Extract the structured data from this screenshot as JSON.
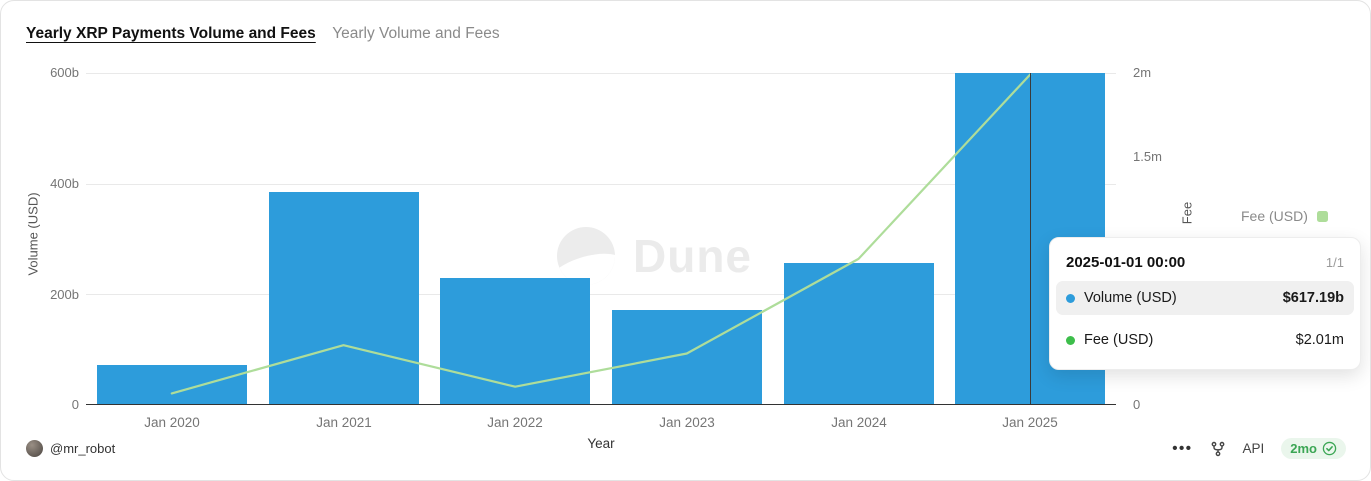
{
  "header": {
    "title": "Yearly XRP Payments Volume and Fees",
    "subtitle": "Yearly Volume and Fees"
  },
  "chart_data": {
    "type": "bar",
    "categories": [
      "Jan 2020",
      "Jan 2021",
      "Jan 2022",
      "Jan 2023",
      "Jan 2024",
      "Jan 2025"
    ],
    "series": [
      {
        "name": "Volume (USD)",
        "type": "bar",
        "unit": "billions USD",
        "color": "#2d9cdb",
        "values": [
          72,
          385,
          230,
          172,
          257,
          617.19
        ]
      },
      {
        "name": "Fee (USD)",
        "type": "line",
        "unit": "millions USD",
        "color": "#aedd9a",
        "values": [
          0.07,
          0.36,
          0.11,
          0.31,
          0.88,
          2.01
        ]
      }
    ],
    "xlabel": "Year",
    "ylabel_left": "Volume (USD)",
    "ylabel_right": "Fee",
    "yticks_left": [
      "600b",
      "400b",
      "200b",
      "0"
    ],
    "yticks_right": [
      "2m",
      "1.5m",
      "0"
    ],
    "ylim_left": [
      0,
      600
    ],
    "ylim_right": [
      0,
      2
    ],
    "grid": true,
    "legend_position": "right"
  },
  "legend": {
    "fee_label": "Fee (USD)"
  },
  "tooltip": {
    "title": "2025-01-01 00:00",
    "page": "1/1",
    "rows": [
      {
        "label": "Volume (USD)",
        "value": "$617.19b",
        "color": "#2d9cdb"
      },
      {
        "label": "Fee (USD)",
        "value": "$2.01m",
        "color": "#3dbe4b"
      }
    ]
  },
  "watermark": "Dune",
  "footer": {
    "author": "@mr_robot",
    "options_icon": "ellipsis-icon",
    "fork_icon": "fork-icon",
    "api_label": "API",
    "age_badge": "2mo"
  }
}
